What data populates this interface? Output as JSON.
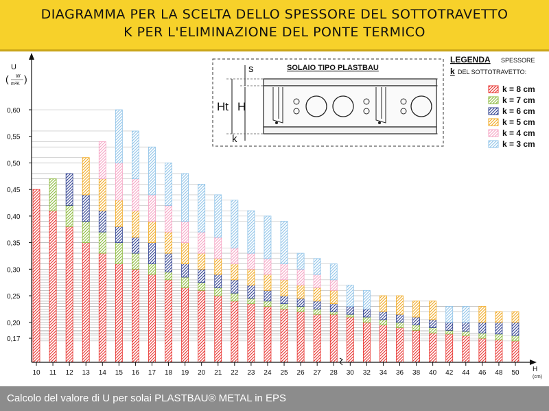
{
  "title": {
    "line1": "DIAGRAMMA PER LA SCELTA DELLO SPESSORE DEL SOTTOTRAVETTO",
    "line2": "K PER L'ELIMINAZIONE DEL PONTE TERMICO"
  },
  "footer": "Calcolo del valore di U per solai PLASTBAU® METAL in EPS",
  "diagram": {
    "title": "SOLAIO TIPO PLASTBAU",
    "label_s": "s",
    "label_ht": "Ht",
    "label_h": "H",
    "label_k": "k"
  },
  "legend": {
    "title": "LEGENDA",
    "title_suffix": "SPESSORE",
    "subtitle_k": "k",
    "subtitle_rest": "DEL SOTTOTRAVETTO:"
  },
  "chart_data": {
    "type": "bar",
    "subtype": "stacked-range",
    "ylabel": "U",
    "ylabel_unit_num": "W",
    "ylabel_unit_den": "m²K",
    "xlabel": "H",
    "xlabel_unit": "(cm)",
    "ylim": [
      0.09,
      0.635
    ],
    "y_ticks": [
      "0,60",
      "0,55",
      "0,50",
      "0,45",
      "0,40",
      "0,35",
      "0,30",
      "0,25",
      "0,20",
      "0,17"
    ],
    "y_tick_values": [
      0.6,
      0.55,
      0.5,
      0.45,
      0.4,
      0.35,
      0.3,
      0.25,
      0.2,
      0.17
    ],
    "categories": [
      "10",
      "11",
      "12",
      "13",
      "14",
      "15",
      "16",
      "17",
      "18",
      "19",
      "20",
      "21",
      "22",
      "23",
      "24",
      "25",
      "26",
      "27",
      "28",
      "30",
      "32",
      "34",
      "36",
      "38",
      "40",
      "42",
      "44",
      "46",
      "48",
      "50"
    ],
    "axis_break_after": "28",
    "series": [
      {
        "name": "k = 8 cm",
        "color": "#e8302c",
        "values": [
          0.45,
          0.41,
          0.38,
          0.35,
          0.33,
          0.31,
          0.3,
          0.29,
          0.28,
          0.265,
          0.26,
          0.25,
          0.24,
          0.235,
          0.23,
          0.225,
          0.22,
          0.215,
          0.215,
          0.21,
          0.2,
          0.195,
          0.19,
          0.185,
          0.18,
          0.178,
          0.175,
          0.17,
          0.167,
          0.165
        ]
      },
      {
        "name": "k = 7 cm",
        "color": "#8ab83a",
        "values": [
          null,
          0.47,
          0.42,
          0.39,
          0.37,
          0.35,
          0.33,
          0.31,
          0.295,
          0.285,
          0.275,
          0.265,
          0.255,
          0.245,
          0.24,
          0.235,
          0.23,
          0.225,
          0.22,
          0.215,
          0.21,
          0.205,
          0.2,
          0.195,
          0.19,
          0.185,
          0.183,
          0.18,
          0.178,
          0.175
        ]
      },
      {
        "name": "k = 6 cm",
        "color": "#2e3f8f",
        "values": [
          null,
          null,
          0.48,
          0.44,
          0.41,
          0.38,
          0.36,
          0.35,
          0.33,
          0.31,
          0.3,
          0.29,
          0.28,
          0.27,
          0.26,
          0.25,
          0.245,
          0.24,
          0.235,
          0.23,
          0.225,
          0.22,
          0.215,
          0.21,
          0.205,
          0.2,
          0.2,
          0.2,
          0.2,
          0.2
        ]
      },
      {
        "name": "k = 5 cm",
        "color": "#f0a820",
        "values": [
          null,
          null,
          null,
          0.51,
          0.47,
          0.43,
          0.41,
          0.39,
          0.37,
          0.35,
          0.33,
          0.32,
          0.31,
          0.3,
          0.29,
          0.28,
          0.27,
          0.265,
          0.26,
          null,
          null,
          0.25,
          0.25,
          0.24,
          0.24,
          null,
          null,
          0.23,
          0.22,
          0.22
        ]
      },
      {
        "name": "k = 4 cm",
        "color": "#f5a3c3",
        "values": [
          null,
          null,
          null,
          null,
          0.54,
          0.5,
          0.47,
          0.44,
          0.42,
          0.39,
          0.37,
          0.36,
          0.34,
          0.33,
          0.32,
          0.31,
          0.3,
          0.29,
          0.28,
          null,
          null,
          null,
          null,
          null,
          null,
          null,
          null,
          null,
          null,
          null
        ]
      },
      {
        "name": "k = 3 cm",
        "color": "#8fc3e8",
        "values": [
          null,
          null,
          null,
          null,
          null,
          0.6,
          0.56,
          0.53,
          0.5,
          0.48,
          0.46,
          0.44,
          0.43,
          0.41,
          0.4,
          0.39,
          0.33,
          0.32,
          0.31,
          0.27,
          0.26,
          null,
          null,
          null,
          null,
          0.23,
          0.23,
          0.23,
          null,
          null
        ]
      }
    ]
  }
}
